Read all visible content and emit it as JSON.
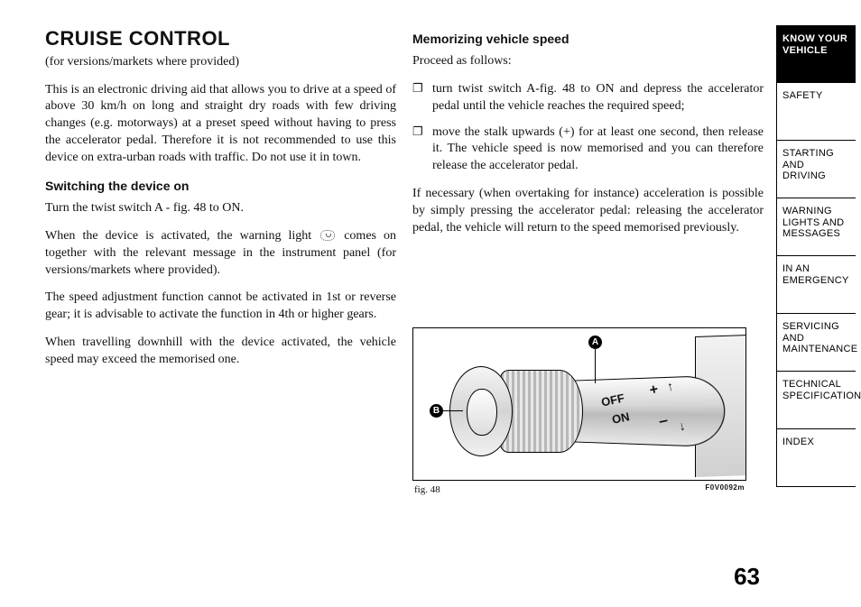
{
  "page_number": "63",
  "sidebar": {
    "tabs": [
      "KNOW YOUR VEHICLE",
      "SAFETY",
      "STARTING AND DRIVING",
      "WARNING LIGHTS AND MESSAGES",
      "IN AN EMERGENCY",
      "SERVICING AND MAINTENANCE",
      "TECHNICAL SPECIFICATIONS",
      "INDEX"
    ],
    "active_index": 0
  },
  "left": {
    "title": "CRUISE CONTROL",
    "subtitle": "(for versions/markets where provided)",
    "intro": "This is an electronic driving aid that allows you to drive at a speed of above 30 km/h on long and straight dry roads with few driving changes (e.g. motorways) at a preset speed without having to press the accelerator pedal. Therefore it is not recommended to use this device on extra-urban roads with traffic. Do not use it in town.",
    "h2": "Switching the device on",
    "p1": "Turn the twist switch A - fig. 48 to ON.",
    "p2a": "When the device is activated, the warning light ",
    "p2b": " comes on together with the relevant message in the instrument panel (for versions/markets where provided).",
    "p3": "The speed adjustment function cannot be activated in 1st or reverse gear; it is advisable to activate the function in 4th or higher gears.",
    "p4": "When travelling downhill with the device activated, the vehicle speed may exceed the memorised one."
  },
  "right": {
    "h2": "Memorizing vehicle speed",
    "lead": "Proceed as follows:",
    "b1": "turn twist switch A-fig. 48 to ON and depress the accelerator pedal until the vehicle reaches the required speed;",
    "b2": "move the stalk upwards (+) for at least one second, then release it. The vehicle speed is now memorised and you can therefore release the accelerator pedal.",
    "p1": "If necessary (when overtaking for instance) acceleration is possible by simply pressing the accelerator pedal: releasing the accelerator pedal, the vehicle will return to the speed memorised previously."
  },
  "figure": {
    "caption_left": "fig. 48",
    "caption_right": "F0V0092m",
    "label_A": "A",
    "label_B": "B",
    "txt_off": "OFF",
    "txt_on": "ON",
    "plus": "+",
    "minus": "–",
    "arrow_up": "↑",
    "arrow_dn": "↓"
  }
}
